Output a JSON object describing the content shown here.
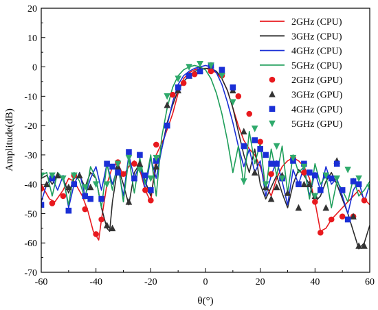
{
  "chart_data": {
    "type": "line",
    "xlabel": "θ(°)",
    "ylabel": "Amplitude(dB)",
    "xlim": [
      -60,
      60
    ],
    "ylim": [
      -70,
      20
    ],
    "xticks": [
      -60,
      -40,
      -20,
      0,
      20,
      40,
      60
    ],
    "yticks": [
      -70,
      -60,
      -50,
      -40,
      -30,
      -20,
      -10,
      0,
      10,
      20
    ],
    "grid": false,
    "legend_position": "top-right",
    "series": [
      {
        "name": "2GHz (CPU)",
        "kind": "line",
        "color": "#e8191e",
        "x": [
          -60,
          -57,
          -55,
          -52,
          -50,
          -48,
          -45,
          -43,
          -41,
          -39,
          -38,
          -36,
          -34,
          -32,
          -30,
          -28,
          -26,
          -24,
          -22,
          -20,
          -18,
          -15,
          -12,
          -10,
          -8,
          -6,
          -4,
          -2,
          0,
          2,
          4,
          6,
          8,
          10,
          12,
          14,
          16,
          18,
          20,
          22,
          24,
          26,
          28,
          30,
          32,
          34,
          36,
          38,
          40,
          42,
          44,
          46,
          48,
          50,
          52,
          54,
          56,
          58,
          60
        ],
        "y": [
          -40,
          -45,
          -46,
          -42,
          -38,
          -39,
          -44,
          -49,
          -56,
          -59,
          -52,
          -40,
          -34,
          -33,
          -37,
          -34,
          -32,
          -35,
          -42,
          -46,
          -30,
          -24,
          -16,
          -9,
          -4,
          -2,
          -1,
          -0.5,
          -0.5,
          -1,
          -2,
          -4,
          -8,
          -14,
          -20,
          -25,
          -28,
          -30,
          -34,
          -40,
          -44,
          -38,
          -34,
          -32,
          -31,
          -32,
          -34,
          -38,
          -46,
          -56,
          -55,
          -52,
          -50,
          -48,
          -46,
          -44,
          -42,
          -45,
          -47
        ]
      },
      {
        "name": "3GHz (CPU)",
        "kind": "line",
        "color": "#2b2b2b",
        "x": [
          -60,
          -58,
          -56,
          -54,
          -52,
          -50,
          -48,
          -46,
          -44,
          -42,
          -40,
          -38,
          -36,
          -35,
          -34,
          -32,
          -30,
          -28,
          -26,
          -24,
          -22,
          -20,
          -18,
          -16,
          -14,
          -12,
          -10,
          -8,
          -6,
          -4,
          -2,
          0,
          2,
          4,
          6,
          8,
          10,
          12,
          14,
          16,
          18,
          20,
          22,
          24,
          26,
          28,
          30,
          32,
          34,
          36,
          38,
          40,
          42,
          44,
          46,
          48,
          50,
          52,
          54,
          56,
          58,
          60
        ],
        "y": [
          -38,
          -37,
          -40,
          -37,
          -38,
          -43,
          -38,
          -37,
          -41,
          -36,
          -38,
          -48,
          -55,
          -56,
          -46,
          -34,
          -40,
          -47,
          -36,
          -33,
          -39,
          -44,
          -34,
          -28,
          -19,
          -13,
          -8,
          -5,
          -3,
          -1.5,
          -1,
          -0.5,
          -0.5,
          -1.5,
          -4,
          -8,
          -14,
          -22,
          -30,
          -36,
          -28,
          -40,
          -45,
          -41,
          -37,
          -43,
          -48,
          -40,
          -35,
          -37,
          -40,
          -46,
          -44,
          -39,
          -36,
          -40,
          -45,
          -50,
          -56,
          -62,
          -60,
          -54
        ]
      },
      {
        "name": "4GHz (CPU)",
        "kind": "line",
        "color": "#1a2fd6",
        "x": [
          -60,
          -58,
          -56,
          -54,
          -52,
          -50,
          -48,
          -46,
          -44,
          -42,
          -40,
          -38,
          -36,
          -34,
          -32,
          -30,
          -28,
          -26,
          -24,
          -22,
          -20,
          -18,
          -16,
          -14,
          -12,
          -10,
          -8,
          -6,
          -4,
          -2,
          0,
          2,
          4,
          6,
          8,
          10,
          12,
          14,
          16,
          18,
          20,
          22,
          24,
          26,
          28,
          30,
          32,
          34,
          36,
          38,
          40,
          42,
          44,
          46,
          48,
          50,
          52,
          54,
          56,
          58,
          60
        ],
        "y": [
          -46,
          -40,
          -38,
          -42,
          -37,
          -48,
          -40,
          -36,
          -44,
          -38,
          -34,
          -42,
          -33,
          -40,
          -34,
          -44,
          -30,
          -38,
          -33,
          -42,
          -31,
          -38,
          -28,
          -20,
          -12,
          -6,
          -3,
          -1.5,
          -0.5,
          0,
          0.5,
          0,
          -2,
          -6,
          -12,
          -19,
          -27,
          -34,
          -28,
          -36,
          -32,
          -44,
          -37,
          -32,
          -39,
          -47,
          -35,
          -40,
          -34,
          -44,
          -36,
          -42,
          -34,
          -40,
          -38,
          -44,
          -50,
          -42,
          -39,
          -46,
          -40
        ]
      },
      {
        "name": "5GHz (CPU)",
        "kind": "line",
        "color": "#1e9e5a",
        "x": [
          -60,
          -58,
          -56,
          -54,
          -52,
          -50,
          -48,
          -46,
          -44,
          -42,
          -40,
          -38,
          -36,
          -34,
          -32,
          -30,
          -28,
          -26,
          -24,
          -22,
          -20,
          -18,
          -16,
          -14,
          -12,
          -10,
          -8,
          -6,
          -4,
          -2,
          0,
          2,
          4,
          6,
          8,
          10,
          12,
          14,
          16,
          18,
          20,
          22,
          24,
          26,
          28,
          30,
          32,
          34,
          36,
          38,
          40,
          42,
          44,
          46,
          48,
          50,
          52,
          54,
          56,
          58,
          60
        ],
        "y": [
          -37,
          -36,
          -44,
          -36,
          -38,
          -47,
          -36,
          -39,
          -45,
          -34,
          -38,
          -48,
          -33,
          -42,
          -32,
          -46,
          -31,
          -43,
          -31,
          -40,
          -30,
          -44,
          -24,
          -14,
          -7,
          -3,
          -1,
          0,
          0.5,
          0,
          -1,
          -4,
          -9,
          -16,
          -25,
          -36,
          -27,
          -40,
          -22,
          -33,
          -26,
          -42,
          -28,
          -37,
          -27,
          -43,
          -30,
          -36,
          -34,
          -45,
          -33,
          -40,
          -37,
          -48,
          -39,
          -42,
          -46,
          -38,
          -44,
          -42,
          -39
        ]
      },
      {
        "name": "2GHz (GPU)",
        "kind": "markers",
        "marker": "circle",
        "color": "#e8191e",
        "x": [
          -60,
          -56,
          -52,
          -48,
          -44,
          -40,
          -38,
          -32,
          -30,
          -26,
          -22,
          -20,
          -18,
          -12,
          -8,
          -4,
          2,
          6,
          12,
          16,
          20,
          24,
          28,
          32,
          36,
          40,
          42,
          46,
          50,
          54,
          58
        ],
        "y": [
          -41.5,
          -46.5,
          -44,
          -37,
          -48.5,
          -57,
          -52,
          -32.5,
          -36.5,
          -33,
          -42,
          -45.5,
          -26.5,
          -9.5,
          -5.5,
          -2.5,
          -1.5,
          -3,
          -10,
          -16,
          -25.5,
          -36.5,
          -38,
          -31,
          -36,
          -46,
          -56.5,
          -52,
          -51,
          -51,
          -45.5
        ]
      },
      {
        "name": "3GHz (GPU)",
        "kind": "markers",
        "marker": "triangle-up",
        "color": "#333333",
        "x": [
          -58,
          -54,
          -50,
          -46,
          -42,
          -36,
          -34,
          -32,
          -28,
          -24,
          -20,
          -18,
          -14,
          -10,
          -6,
          -2,
          2,
          6,
          10,
          14,
          18,
          22,
          24,
          26,
          28,
          30,
          34,
          36,
          38,
          40,
          44,
          48,
          54,
          56,
          58
        ],
        "y": [
          -40,
          -37,
          -41,
          -37,
          -41,
          -54,
          -55,
          -34,
          -46,
          -33,
          -42,
          -34,
          -13,
          -8,
          -3,
          -1,
          0.5,
          -1.5,
          -8,
          -22,
          -36,
          -41,
          -45,
          -41,
          -37,
          -43,
          -48,
          -40,
          -40,
          -44,
          -48,
          -32,
          -51,
          -61,
          -61
        ]
      },
      {
        "name": "4GHz (GPU)",
        "kind": "markers",
        "marker": "square",
        "color": "#1a2fd6",
        "x": [
          -60,
          -56,
          -50,
          -48,
          -44,
          -42,
          -38,
          -36,
          -34,
          -32,
          -28,
          -26,
          -24,
          -22,
          -20,
          -18,
          -14,
          -10,
          -6,
          -2,
          2,
          6,
          10,
          14,
          18,
          20,
          22,
          24,
          26,
          28,
          32,
          34,
          36,
          38,
          40,
          42,
          44,
          46,
          48,
          50,
          52,
          54,
          56
        ],
        "y": [
          -47,
          -38,
          -49,
          -40,
          -44,
          -45,
          -45,
          -33,
          -34,
          -36,
          -29,
          -38,
          -30,
          -37,
          -42,
          -32,
          -20,
          -7,
          -3,
          -1.5,
          0.5,
          -1,
          -7,
          -27,
          -25,
          -28,
          -30,
          -33,
          -33,
          -38,
          -32,
          -40,
          -33,
          -36,
          -37,
          -42,
          -37,
          -38,
          -33,
          -42,
          -52,
          -39,
          -40
        ]
      },
      {
        "name": "5GHz (GPU)",
        "kind": "markers",
        "marker": "triangle-down",
        "color": "#2faa6c",
        "x": [
          -60,
          -56,
          -52,
          -48,
          -44,
          -40,
          -36,
          -32,
          -28,
          -24,
          -20,
          -18,
          -14,
          -10,
          -6,
          -2,
          2,
          6,
          10,
          14,
          18,
          22,
          26,
          28,
          32,
          36,
          40,
          44,
          48,
          52,
          56,
          60
        ],
        "y": [
          -37,
          -37,
          -38,
          -37,
          -41,
          -40,
          -40,
          -33,
          -31,
          -35,
          -38,
          -31,
          -10,
          -4,
          0,
          1,
          0.5,
          -3,
          -12,
          -39,
          -21,
          -40,
          -27,
          -38,
          -31,
          -34,
          -44,
          -37,
          -38,
          -35,
          -38,
          -41
        ]
      }
    ]
  }
}
